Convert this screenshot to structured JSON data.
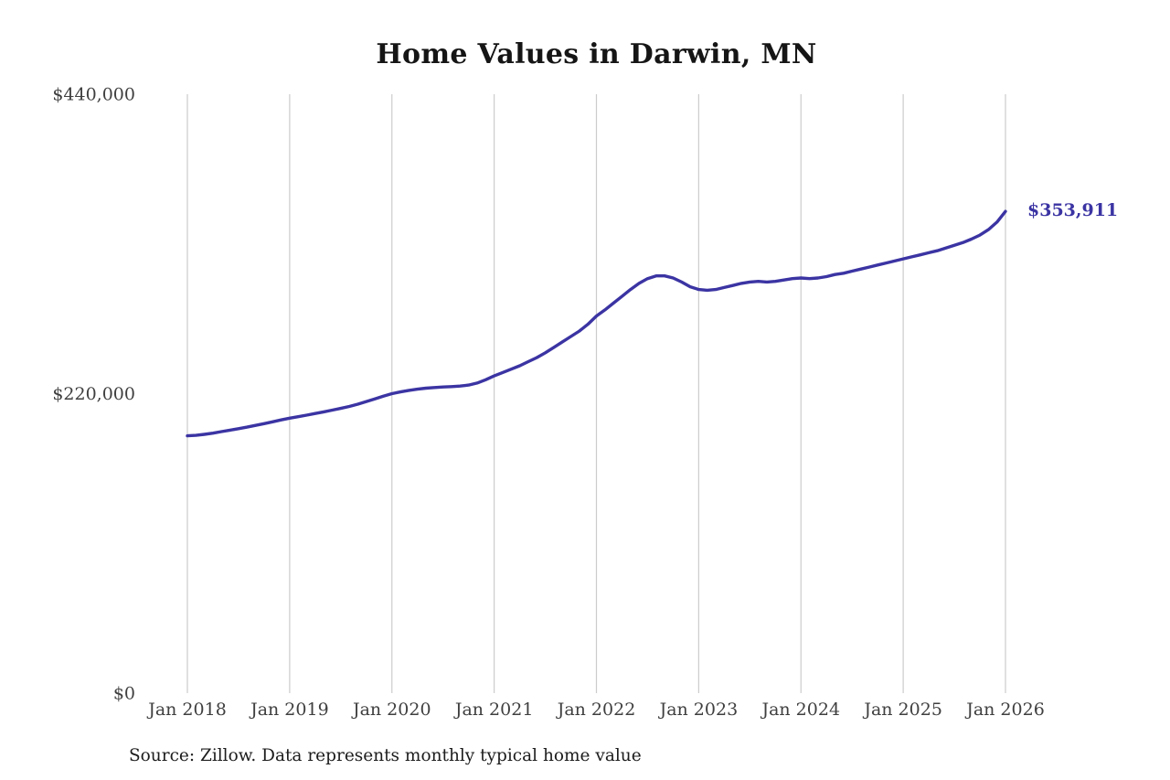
{
  "title": "Home Values in Darwin, MN",
  "end_label": "$353,911",
  "source_note": "Source: Zillow. Data represents monthly typical home value",
  "colors": {
    "line": "#3b34a3",
    "grid": "#cccccc",
    "axis_text": "#3f3f3f",
    "title_text": "#151515"
  },
  "chart_data": {
    "type": "line",
    "title": "Home Values in Darwin, MN",
    "xlabel": "",
    "ylabel": "",
    "x_interval": "monthly",
    "x_range": [
      "Jan 2018",
      "Jan 2026"
    ],
    "x_tick_labels": [
      "Jan 2018",
      "Jan 2019",
      "Jan 2020",
      "Jan 2021",
      "Jan 2022",
      "Jan 2023",
      "Jan 2024",
      "Jan 2025",
      "Jan 2026"
    ],
    "y_ticks": [
      0,
      220000,
      440000
    ],
    "y_tick_labels": [
      "$0",
      "$220,000",
      "$440,000"
    ],
    "ylim": [
      0,
      440000
    ],
    "grid": "vertical-only",
    "legend": "none",
    "annotation": {
      "text": "$353,911",
      "attached_to": "last-point"
    },
    "series": [
      {
        "name": "Monthly typical home value",
        "values": [
          189000,
          189400,
          190100,
          191000,
          192100,
          193200,
          194300,
          195400,
          196700,
          198000,
          199300,
          200700,
          202000,
          203100,
          204200,
          205400,
          206600,
          207900,
          209200,
          210600,
          212300,
          214200,
          216100,
          218100,
          220000,
          221300,
          222400,
          223300,
          224000,
          224500,
          224900,
          225200,
          225600,
          226300,
          227800,
          230200,
          233000,
          235500,
          238000,
          240500,
          243500,
          246500,
          250000,
          254000,
          258000,
          262000,
          266000,
          271000,
          277000,
          281500,
          286500,
          291500,
          296500,
          301000,
          304500,
          306500,
          306500,
          305000,
          302000,
          298500,
          296500,
          296000,
          296500,
          298000,
          299500,
          301000,
          302000,
          302500,
          302000,
          302500,
          303500,
          304500,
          305000,
          304500,
          305000,
          306000,
          307500,
          308500,
          310000,
          311500,
          313000,
          314500,
          316000,
          317500,
          319000,
          320500,
          322000,
          323500,
          325000,
          327000,
          329000,
          331000,
          333500,
          336500,
          340500,
          346000,
          353911
        ]
      }
    ],
    "last_value": 353911
  }
}
